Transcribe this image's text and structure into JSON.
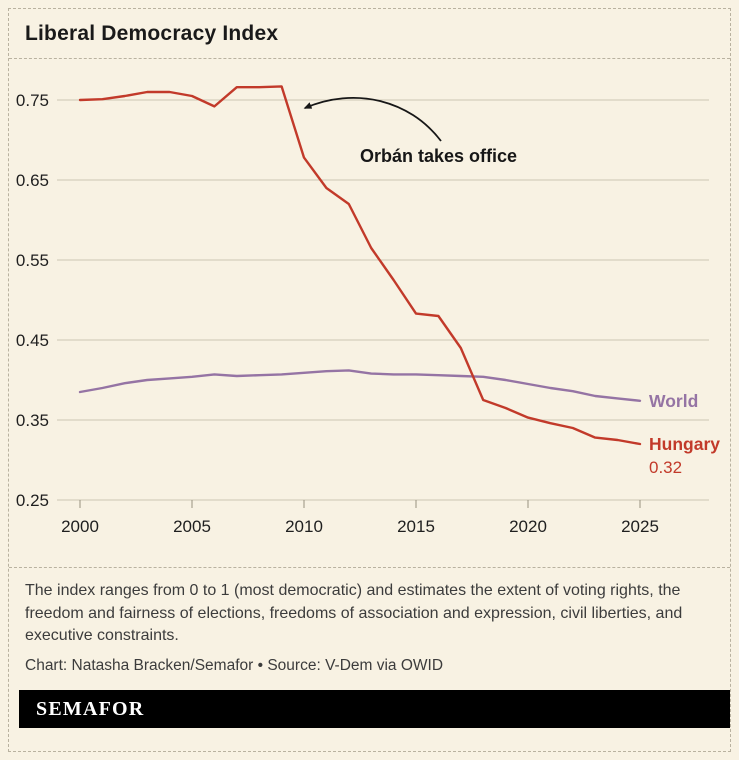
{
  "header": {
    "title": "Liberal Democracy Index"
  },
  "chart_data": {
    "type": "line",
    "title": "Liberal Democracy Index",
    "xlabel": "",
    "ylabel": "",
    "ylim": [
      0.25,
      0.78
    ],
    "yticks": [
      0.75,
      0.65,
      0.55,
      0.45,
      0.35,
      0.25
    ],
    "xticks": [
      2000,
      2005,
      2010,
      2015,
      2020,
      2025
    ],
    "grid": "horizontal",
    "legend_position": "end-of-line-labels",
    "x": [
      2000,
      2001,
      2002,
      2003,
      2004,
      2005,
      2006,
      2007,
      2008,
      2009,
      2010,
      2011,
      2012,
      2013,
      2014,
      2015,
      2016,
      2017,
      2018,
      2019,
      2020,
      2021,
      2022,
      2023,
      2024,
      2025
    ],
    "series": [
      {
        "name": "World",
        "color": "#9574a4",
        "values": [
          0.385,
          0.39,
          0.396,
          0.4,
          0.402,
          0.404,
          0.407,
          0.405,
          0.406,
          0.407,
          0.409,
          0.411,
          0.412,
          0.408,
          0.407,
          0.407,
          0.406,
          0.405,
          0.404,
          0.4,
          0.395,
          0.39,
          0.386,
          0.38,
          0.377,
          0.374
        ]
      },
      {
        "name": "Hungary",
        "color": "#c23a2a",
        "values": [
          0.75,
          0.751,
          0.755,
          0.76,
          0.76,
          0.755,
          0.742,
          0.766,
          0.766,
          0.767,
          0.678,
          0.64,
          0.62,
          0.565,
          0.525,
          0.483,
          0.48,
          0.44,
          0.375,
          0.365,
          0.353,
          0.346,
          0.34,
          0.328,
          0.325,
          0.32
        ],
        "end_value_label": "0.32"
      }
    ],
    "annotation": {
      "text": "Orbán takes office",
      "arrow_to_year": 2009.8
    },
    "colors": {
      "background": "#f8f2e3",
      "grid": "#ccc5b3",
      "tick": "#97917f",
      "text": "#1f1f1f",
      "annotation": "#171717"
    }
  },
  "footer": {
    "description": "The index ranges from 0 to 1 (most democratic) and estimates the extent of voting rights, the freedom and fairness of elections, freedoms of association and expression, civil liberties, and executive constraints.",
    "credit": "Chart: Natasha Bracken/Semafor • Source: V-Dem via OWID",
    "logo": "SEMAFOR"
  }
}
